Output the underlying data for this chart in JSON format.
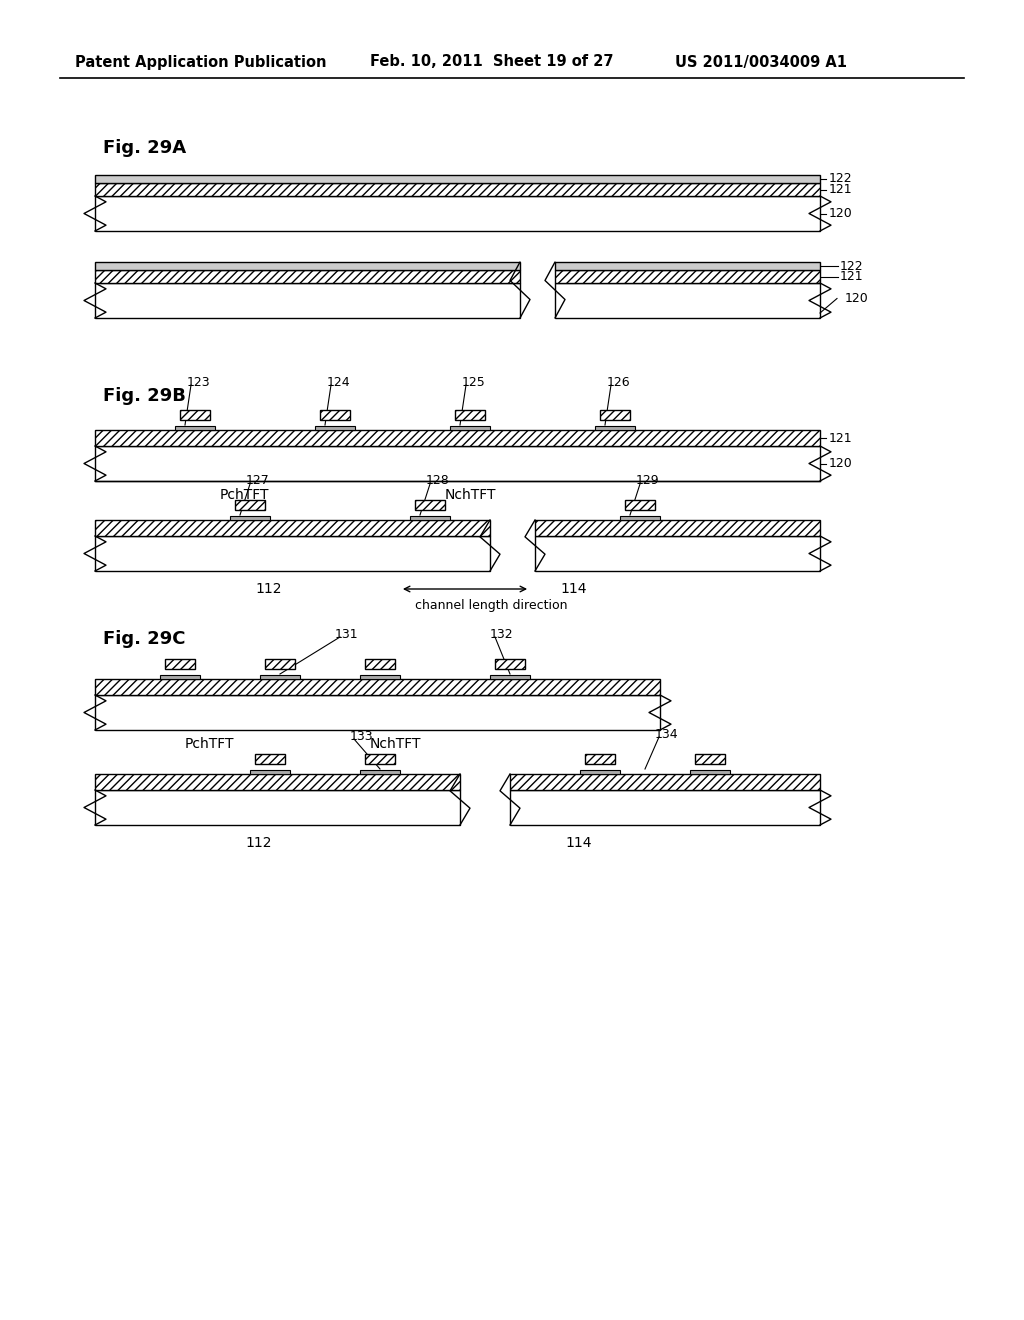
{
  "bg_color": "#ffffff",
  "header_left": "Patent Application Publication",
  "header_mid": "Feb. 10, 2011  Sheet 19 of 27",
  "header_right": "US 2011/0034009 A1",
  "line_color": "#000000"
}
